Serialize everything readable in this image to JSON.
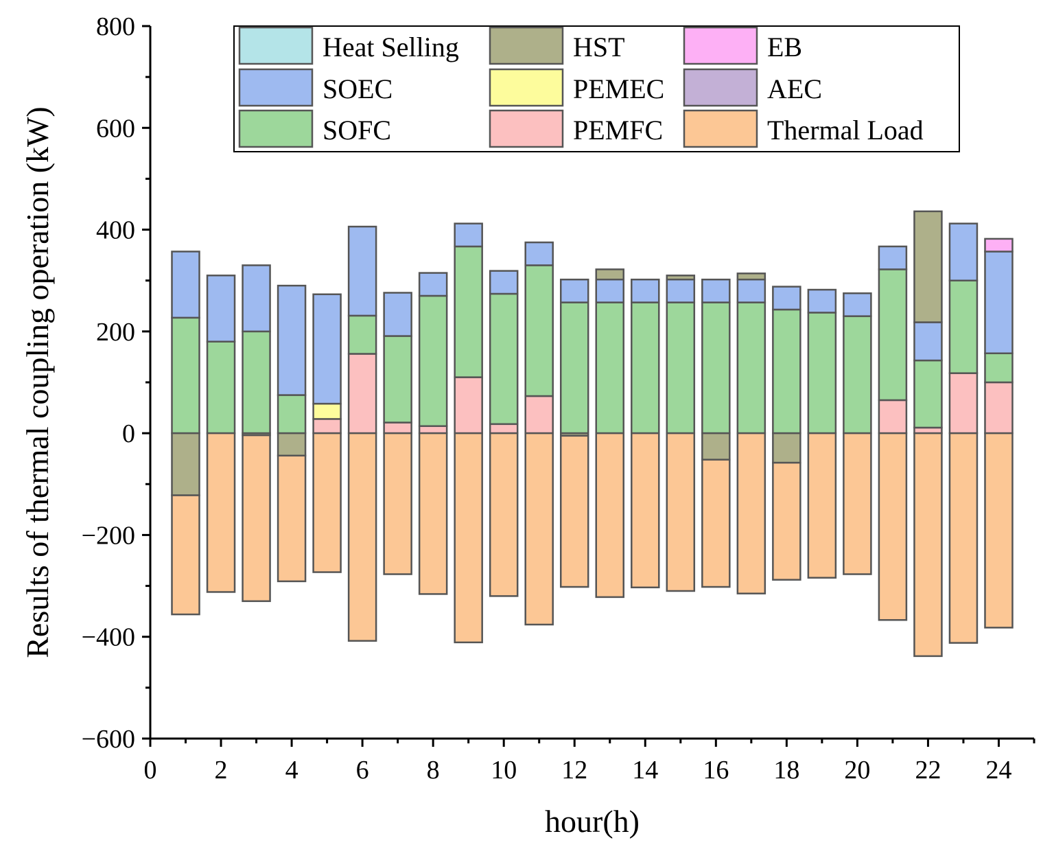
{
  "chart_data": {
    "type": "bar",
    "stacked": true,
    "xlabel": "hour(h)",
    "ylabel": "Results of  thermal coupling operation (kW)",
    "xlim": [
      0,
      25
    ],
    "ylim": [
      -600,
      800
    ],
    "x_ticks": [
      "0",
      "2",
      "4",
      "6",
      "8",
      "10",
      "12",
      "14",
      "16",
      "18",
      "20",
      "22",
      "24"
    ],
    "y_ticks": [
      "-600",
      "-400",
      "-200",
      "0",
      "200",
      "400",
      "600",
      "800"
    ],
    "x_tick_values": [
      0,
      2,
      4,
      6,
      8,
      10,
      12,
      14,
      16,
      18,
      20,
      22,
      24
    ],
    "y_tick_values": [
      -600,
      -400,
      -200,
      0,
      200,
      400,
      600,
      800
    ],
    "hours": [
      1,
      2,
      3,
      4,
      5,
      6,
      7,
      8,
      9,
      10,
      11,
      12,
      13,
      14,
      15,
      16,
      17,
      18,
      19,
      20,
      21,
      22,
      23,
      24
    ],
    "legend_position": "top",
    "positive_order": [
      "PEMFC",
      "PEMEC",
      "SOFC",
      "SOEC",
      "HST",
      "EB",
      "AEC",
      "Heat Selling"
    ],
    "negative_order": [
      "HST",
      "Heat Selling",
      "Thermal Load"
    ],
    "series": [
      {
        "name": "Heat Selling",
        "color": "#b4e4e8",
        "values": [
          0,
          0,
          0,
          0,
          0,
          0,
          0,
          0,
          0,
          0,
          0,
          0,
          0,
          0,
          0,
          0,
          0,
          0,
          0,
          0,
          0,
          0,
          0,
          0
        ]
      },
      {
        "name": "HST",
        "color": "#aeb08a",
        "values": [
          -122,
          0,
          -4,
          -44,
          0,
          0,
          0,
          0,
          0,
          0,
          0,
          -5,
          20,
          0,
          8,
          -52,
          12,
          -58,
          0,
          0,
          0,
          218,
          0,
          0
        ]
      },
      {
        "name": "EB",
        "color": "#fdb0f5",
        "values": [
          0,
          0,
          0,
          0,
          0,
          0,
          0,
          0,
          0,
          0,
          0,
          0,
          0,
          0,
          0,
          0,
          0,
          0,
          0,
          0,
          0,
          0,
          0,
          25
        ]
      },
      {
        "name": "SOEC",
        "color": "#9ebaf0",
        "values": [
          130,
          130,
          130,
          215,
          215,
          175,
          85,
          45,
          45,
          45,
          45,
          45,
          45,
          45,
          45,
          45,
          45,
          45,
          45,
          45,
          45,
          75,
          112,
          200
        ]
      },
      {
        "name": "PEMEC",
        "color": "#fdfc9c",
        "values": [
          0,
          0,
          0,
          0,
          30,
          0,
          0,
          0,
          0,
          0,
          0,
          0,
          0,
          0,
          0,
          0,
          0,
          0,
          0,
          0,
          0,
          0,
          0,
          0
        ]
      },
      {
        "name": "AEC",
        "color": "#c3b0d6",
        "values": [
          0,
          0,
          0,
          0,
          0,
          0,
          0,
          0,
          0,
          0,
          0,
          0,
          0,
          0,
          0,
          0,
          0,
          0,
          0,
          0,
          0,
          0,
          0,
          0
        ]
      },
      {
        "name": "SOFC",
        "color": "#9dd79b",
        "values": [
          227,
          180,
          200,
          75,
          0,
          75,
          170,
          256,
          257,
          256,
          257,
          257,
          257,
          257,
          257,
          257,
          257,
          243,
          237,
          230,
          257,
          132,
          182,
          57
        ]
      },
      {
        "name": "PEMFC",
        "color": "#fcc0c0",
        "values": [
          0,
          0,
          0,
          0,
          28,
          156,
          21,
          14,
          110,
          18,
          73,
          0,
          0,
          0,
          0,
          0,
          0,
          0,
          0,
          0,
          65,
          11,
          118,
          100
        ]
      },
      {
        "name": "Thermal Load",
        "color": "#fcc795",
        "values": [
          -234,
          -312,
          -326,
          -247,
          -273,
          -408,
          -277,
          -316,
          -411,
          -320,
          -376,
          -297,
          -322,
          -303,
          -310,
          -250,
          -315,
          -230,
          -284,
          -277,
          -367,
          -438,
          -412,
          -382
        ]
      }
    ]
  }
}
